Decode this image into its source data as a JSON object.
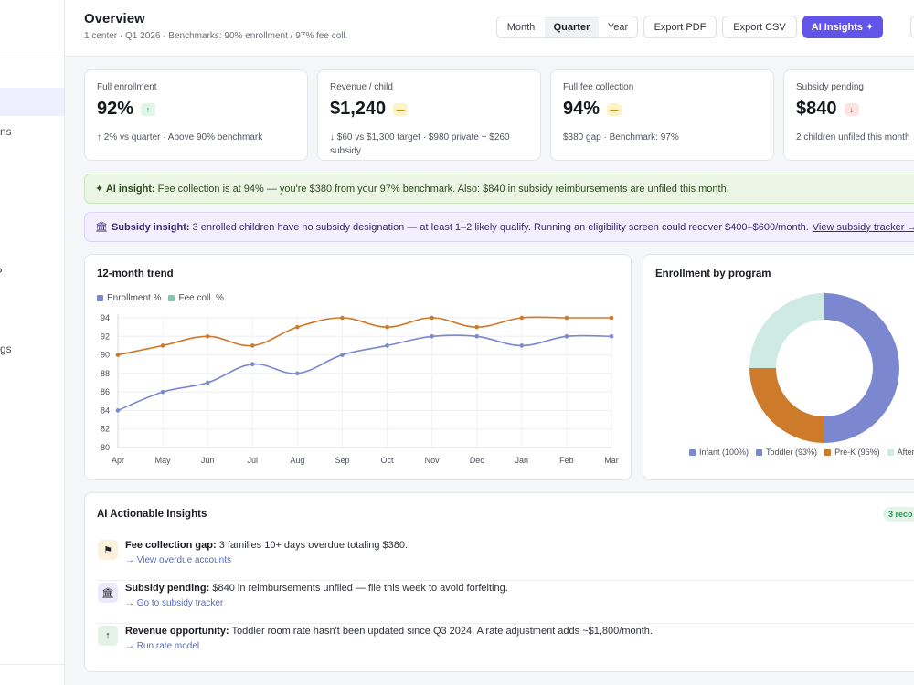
{
  "sidebar": {
    "fragments": [
      {
        "text": "ns"
      },
      {
        "text": "gs"
      }
    ]
  },
  "header": {
    "title": "Overview",
    "subtitle": "1 center · Q1 2026 · Benchmarks: 90% enrollment / 97% fee coll.",
    "periods": [
      "Month",
      "Quarter",
      "Year"
    ],
    "active_period": "Quarter",
    "export_pdf": "Export PDF",
    "export_csv": "Export CSV",
    "ai_insights": "AI Insights ✦"
  },
  "kpis": [
    {
      "label": "Full enrollment",
      "value": "92%",
      "badge": "↑",
      "trend": "up",
      "detail": "↑ 2% vs quarter · Above 90% benchmark"
    },
    {
      "label": "Revenue / child",
      "value": "$1,240",
      "badge": "—",
      "trend": "flat",
      "detail": "↓ $60 vs $1,300 target · $980 private + $260 subsidy"
    },
    {
      "label": "Full fee collection",
      "value": "94%",
      "badge": "—",
      "trend": "flat",
      "detail": "$380 gap · Benchmark: 97%"
    },
    {
      "label": "Subsidy pending",
      "value": "$840",
      "badge": "↓",
      "trend": "down",
      "detail": "2 children unfiled this month"
    }
  ],
  "banners": {
    "ai": {
      "label": "✦ AI insight:",
      "text": "Fee collection is at 94% — you're $380 from your 97% benchmark. Also: $840 in subsidy reimbursements are unfiled this month."
    },
    "subsidy": {
      "icon": "🏛",
      "label": "Subsidy insight:",
      "text": "3 enrolled children have no subsidy designation — at least 1–2 likely qualify. Running an eligibility screen could recover $400–$600/month.",
      "link": "View subsidy tracker →"
    }
  },
  "trend_card": {
    "title": "12-month trend"
  },
  "donut_card": {
    "title": "Enrollment by program"
  },
  "chart_data": [
    {
      "type": "line",
      "title": "12-month trend",
      "x": [
        "Apr",
        "May",
        "Jun",
        "Jul",
        "Aug",
        "Sep",
        "Oct",
        "Nov",
        "Dec",
        "Jan",
        "Feb",
        "Mar"
      ],
      "ylim": [
        80,
        94
      ],
      "yticks": [
        80,
        82,
        84,
        86,
        88,
        90,
        92,
        94
      ],
      "grid": true,
      "legend": "top-left",
      "series": [
        {
          "name": "Enrollment %",
          "color": "#7b87cf",
          "values": [
            84,
            86,
            87,
            89,
            88,
            90,
            91,
            92,
            92,
            91,
            92,
            92
          ]
        },
        {
          "name": "Fee coll. %",
          "color": "#cd7a2a",
          "values": [
            90,
            91,
            92,
            91,
            93,
            94,
            93,
            94,
            93,
            94,
            94,
            94
          ]
        }
      ],
      "legend_colors": [
        "#7b87cf",
        "#86c4ae"
      ]
    },
    {
      "type": "pie",
      "title": "Enrollment by program",
      "legend": "bottom",
      "slices": [
        {
          "name": "Infant (100%)",
          "legend_color": "#7b87cf",
          "color": "#7b87cf",
          "share": 0.5
        },
        {
          "name": "Toddler (93%)",
          "legend_color": "#7b87cf",
          "color": "#cd7a2a",
          "share": 0.25
        },
        {
          "name": "Pre-K (96%)",
          "legend_color": "#cd7a2a",
          "color": "#cfeae2",
          "share": 0.25
        },
        {
          "name": "After S",
          "legend_color": "#cfeae2",
          "color": null,
          "share": 0
        }
      ]
    }
  ],
  "insights": {
    "title": "AI Actionable Insights",
    "count": "3 reco",
    "items": [
      {
        "icon": "⚑",
        "bg": "#fbf1de",
        "bold": "Fee collection gap:",
        "text": "3 families 10+ days overdue totaling $380.",
        "link": "→ View overdue accounts"
      },
      {
        "icon": "🏛",
        "bg": "#ede8fc",
        "bold": "Subsidy pending:",
        "text": "$840 in reimbursements unfiled — file this week to avoid forfeiting.",
        "link": "→ Go to subsidy tracker"
      },
      {
        "icon": "↑",
        "bg": "#e4f3e8",
        "bold": "Revenue opportunity:",
        "text": "Toddler room rate hasn't been updated since Q3 2024. A rate adjustment adds ~$1,800/month.",
        "link": "→ Run rate model"
      }
    ]
  }
}
